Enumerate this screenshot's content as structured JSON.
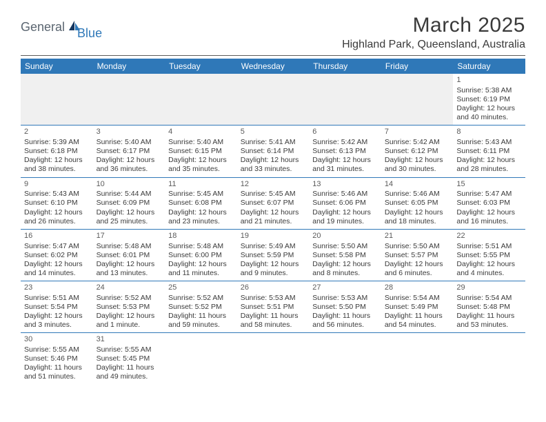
{
  "logo": {
    "part1": "General",
    "part2": "Blue"
  },
  "title": "March 2025",
  "location": "Highland Park, Queensland, Australia",
  "colors": {
    "header_bg": "#2f78b8",
    "header_fg": "#ffffff",
    "text": "#3a3a3a",
    "logo_gray": "#5a6570",
    "logo_blue": "#2f78b8",
    "empty_bg": "#f0f0f0",
    "border": "#2f78b8"
  },
  "days_of_week": [
    "Sunday",
    "Monday",
    "Tuesday",
    "Wednesday",
    "Thursday",
    "Friday",
    "Saturday"
  ],
  "first_weekday": 6,
  "days": [
    {
      "n": 1,
      "sunrise": "5:38 AM",
      "sunset": "6:19 PM",
      "daylight": "12 hours and 40 minutes."
    },
    {
      "n": 2,
      "sunrise": "5:39 AM",
      "sunset": "6:18 PM",
      "daylight": "12 hours and 38 minutes."
    },
    {
      "n": 3,
      "sunrise": "5:40 AM",
      "sunset": "6:17 PM",
      "daylight": "12 hours and 36 minutes."
    },
    {
      "n": 4,
      "sunrise": "5:40 AM",
      "sunset": "6:15 PM",
      "daylight": "12 hours and 35 minutes."
    },
    {
      "n": 5,
      "sunrise": "5:41 AM",
      "sunset": "6:14 PM",
      "daylight": "12 hours and 33 minutes."
    },
    {
      "n": 6,
      "sunrise": "5:42 AM",
      "sunset": "6:13 PM",
      "daylight": "12 hours and 31 minutes."
    },
    {
      "n": 7,
      "sunrise": "5:42 AM",
      "sunset": "6:12 PM",
      "daylight": "12 hours and 30 minutes."
    },
    {
      "n": 8,
      "sunrise": "5:43 AM",
      "sunset": "6:11 PM",
      "daylight": "12 hours and 28 minutes."
    },
    {
      "n": 9,
      "sunrise": "5:43 AM",
      "sunset": "6:10 PM",
      "daylight": "12 hours and 26 minutes."
    },
    {
      "n": 10,
      "sunrise": "5:44 AM",
      "sunset": "6:09 PM",
      "daylight": "12 hours and 25 minutes."
    },
    {
      "n": 11,
      "sunrise": "5:45 AM",
      "sunset": "6:08 PM",
      "daylight": "12 hours and 23 minutes."
    },
    {
      "n": 12,
      "sunrise": "5:45 AM",
      "sunset": "6:07 PM",
      "daylight": "12 hours and 21 minutes."
    },
    {
      "n": 13,
      "sunrise": "5:46 AM",
      "sunset": "6:06 PM",
      "daylight": "12 hours and 19 minutes."
    },
    {
      "n": 14,
      "sunrise": "5:46 AM",
      "sunset": "6:05 PM",
      "daylight": "12 hours and 18 minutes."
    },
    {
      "n": 15,
      "sunrise": "5:47 AM",
      "sunset": "6:03 PM",
      "daylight": "12 hours and 16 minutes."
    },
    {
      "n": 16,
      "sunrise": "5:47 AM",
      "sunset": "6:02 PM",
      "daylight": "12 hours and 14 minutes."
    },
    {
      "n": 17,
      "sunrise": "5:48 AM",
      "sunset": "6:01 PM",
      "daylight": "12 hours and 13 minutes."
    },
    {
      "n": 18,
      "sunrise": "5:48 AM",
      "sunset": "6:00 PM",
      "daylight": "12 hours and 11 minutes."
    },
    {
      "n": 19,
      "sunrise": "5:49 AM",
      "sunset": "5:59 PM",
      "daylight": "12 hours and 9 minutes."
    },
    {
      "n": 20,
      "sunrise": "5:50 AM",
      "sunset": "5:58 PM",
      "daylight": "12 hours and 8 minutes."
    },
    {
      "n": 21,
      "sunrise": "5:50 AM",
      "sunset": "5:57 PM",
      "daylight": "12 hours and 6 minutes."
    },
    {
      "n": 22,
      "sunrise": "5:51 AM",
      "sunset": "5:55 PM",
      "daylight": "12 hours and 4 minutes."
    },
    {
      "n": 23,
      "sunrise": "5:51 AM",
      "sunset": "5:54 PM",
      "daylight": "12 hours and 3 minutes."
    },
    {
      "n": 24,
      "sunrise": "5:52 AM",
      "sunset": "5:53 PM",
      "daylight": "12 hours and 1 minute."
    },
    {
      "n": 25,
      "sunrise": "5:52 AM",
      "sunset": "5:52 PM",
      "daylight": "11 hours and 59 minutes."
    },
    {
      "n": 26,
      "sunrise": "5:53 AM",
      "sunset": "5:51 PM",
      "daylight": "11 hours and 58 minutes."
    },
    {
      "n": 27,
      "sunrise": "5:53 AM",
      "sunset": "5:50 PM",
      "daylight": "11 hours and 56 minutes."
    },
    {
      "n": 28,
      "sunrise": "5:54 AM",
      "sunset": "5:49 PM",
      "daylight": "11 hours and 54 minutes."
    },
    {
      "n": 29,
      "sunrise": "5:54 AM",
      "sunset": "5:48 PM",
      "daylight": "11 hours and 53 minutes."
    },
    {
      "n": 30,
      "sunrise": "5:55 AM",
      "sunset": "5:46 PM",
      "daylight": "11 hours and 51 minutes."
    },
    {
      "n": 31,
      "sunrise": "5:55 AM",
      "sunset": "5:45 PM",
      "daylight": "11 hours and 49 minutes."
    }
  ],
  "labels": {
    "sunrise": "Sunrise:",
    "sunset": "Sunset:",
    "daylight": "Daylight:"
  }
}
